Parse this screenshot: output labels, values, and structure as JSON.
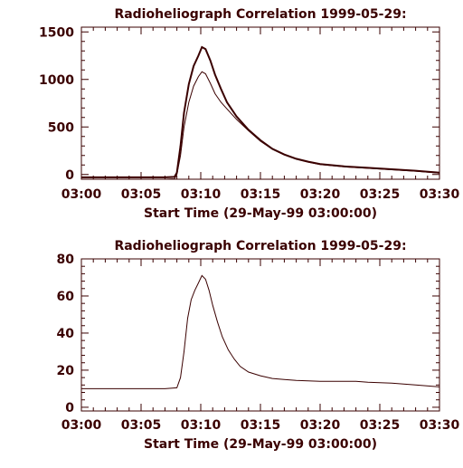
{
  "chart_data": [
    {
      "type": "line",
      "title": "Radioheliograph Correlation 1999-05-29:",
      "xlabel": "Start Time (29-May-99 03:00:00)",
      "ylabel": "",
      "xlim": [
        0,
        30
      ],
      "ylim": [
        -50,
        1550
      ],
      "x_tick_labels": [
        "03:00",
        "03:05",
        "03:10",
        "03:15",
        "03:20",
        "03:25",
        "03:30"
      ],
      "x_tick_values": [
        0,
        5,
        10,
        15,
        20,
        25,
        30
      ],
      "y_tick_labels": [
        "0",
        "500",
        "1000",
        "1500"
      ],
      "y_tick_values": [
        0,
        500,
        1000,
        1500
      ],
      "series": [
        {
          "x": [
            0,
            2,
            4,
            6,
            7,
            7.8,
            8,
            8.3,
            8.6,
            9,
            9.4,
            9.8,
            10.1,
            10.4,
            10.8,
            11.2,
            11.7,
            12.2,
            13,
            14,
            15,
            16,
            17,
            18,
            19,
            20,
            22,
            24,
            26,
            28,
            30
          ],
          "values": [
            -30,
            -30,
            -30,
            -30,
            -30,
            -25,
            20,
            300,
            650,
            950,
            1140,
            1250,
            1340,
            1320,
            1200,
            1050,
            900,
            760,
            610,
            470,
            360,
            270,
            210,
            165,
            135,
            110,
            85,
            70,
            55,
            40,
            20
          ],
          "stroke_width": 2
        },
        {
          "x": [
            0,
            2,
            4,
            6,
            7,
            7.8,
            8,
            8.3,
            8.6,
            9,
            9.4,
            9.8,
            10.1,
            10.4,
            10.8,
            11.2,
            11.7,
            12.2,
            13,
            14,
            15,
            16,
            17,
            18,
            19,
            20,
            22,
            24,
            26,
            28,
            30
          ],
          "values": [
            -50,
            -50,
            -50,
            -50,
            -50,
            -45,
            0,
            200,
            500,
            760,
            930,
            1030,
            1080,
            1060,
            960,
            850,
            760,
            690,
            580,
            460,
            350,
            265,
            205,
            160,
            130,
            105,
            80,
            65,
            50,
            35,
            15
          ],
          "stroke_width": 1
        }
      ]
    },
    {
      "type": "line",
      "title": "Radioheliograph Correlation 1999-05-29:",
      "xlabel": "Start Time (29-May-99 03:00:00)",
      "ylabel": "",
      "xlim": [
        0,
        30
      ],
      "ylim": [
        -2,
        80
      ],
      "x_tick_labels": [
        "03:00",
        "03:05",
        "03:10",
        "03:15",
        "03:20",
        "03:25",
        "03:30"
      ],
      "x_tick_values": [
        0,
        5,
        10,
        15,
        20,
        25,
        30
      ],
      "y_tick_labels": [
        "0",
        "20",
        "40",
        "60",
        "80"
      ],
      "y_tick_values": [
        0,
        20,
        40,
        60,
        80
      ],
      "series": [
        {
          "x": [
            0,
            2,
            4,
            6,
            7,
            8,
            8.3,
            8.6,
            8.9,
            9.2,
            9.5,
            9.8,
            10.1,
            10.4,
            10.7,
            11,
            11.4,
            11.8,
            12.3,
            12.8,
            13.3,
            14,
            15,
            16,
            17,
            18,
            20,
            22,
            23,
            24,
            26,
            28,
            30
          ],
          "values": [
            10,
            10,
            10,
            10,
            10,
            10.5,
            16,
            30,
            48,
            58,
            63,
            67,
            71,
            69,
            63,
            55,
            46,
            38,
            31,
            26,
            22,
            19,
            17,
            15.5,
            15,
            14.5,
            14,
            14,
            14,
            13.5,
            13,
            12,
            11
          ],
          "stroke_width": 1
        }
      ]
    }
  ]
}
